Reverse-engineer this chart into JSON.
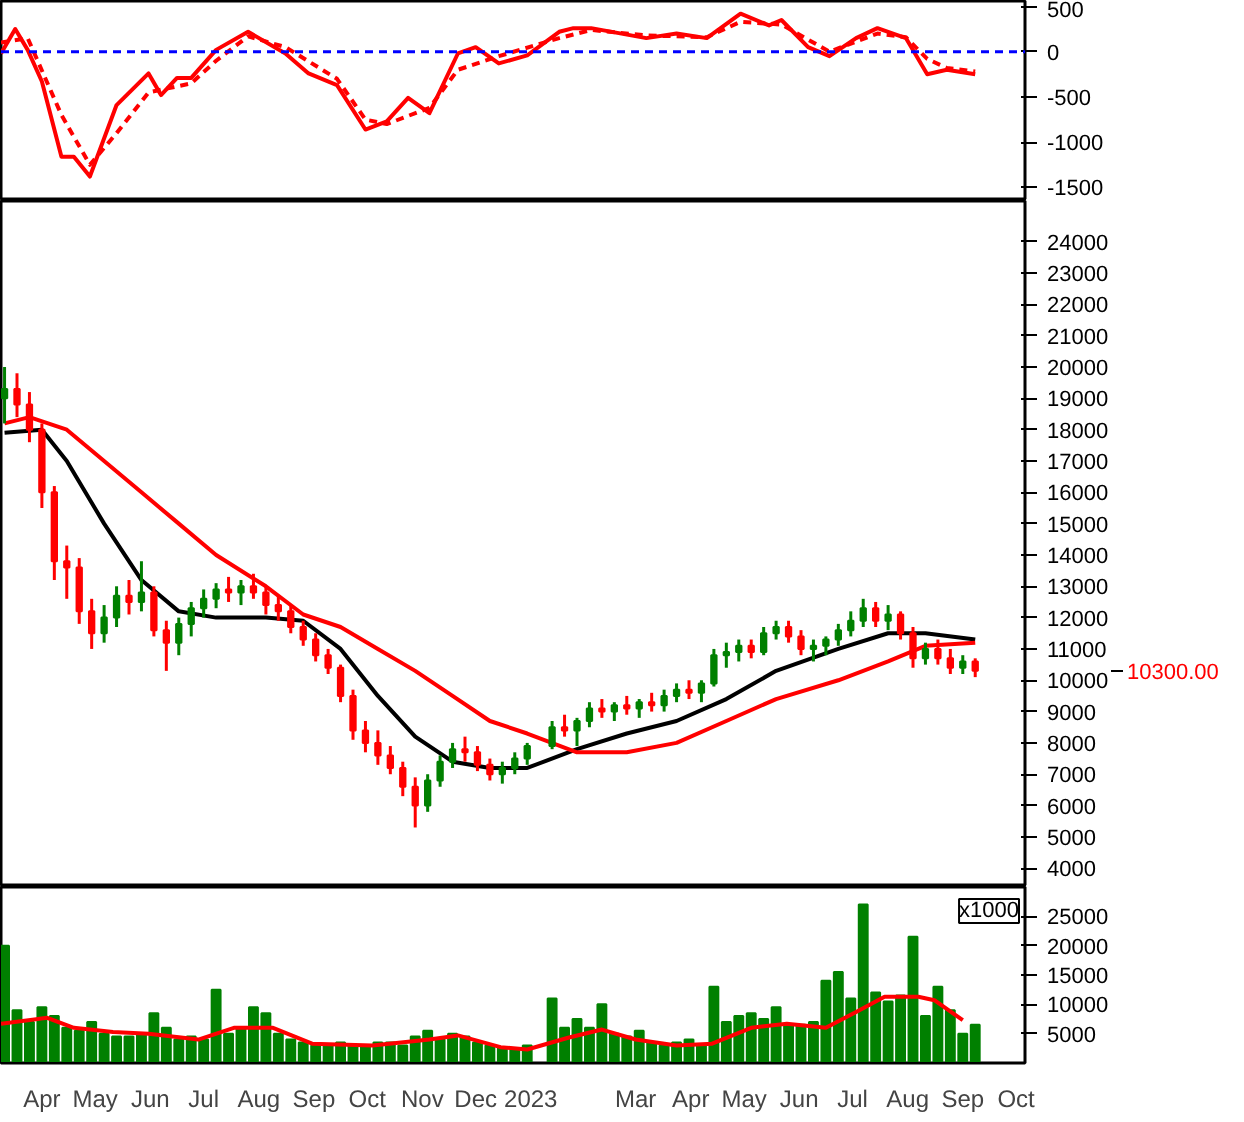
{
  "chart_data": [
    {
      "type": "line",
      "xlim": [
        "2022-03-23",
        "2023-10-20"
      ],
      "ylim": [
        -1650,
        560
      ],
      "yticks": [
        500,
        0,
        -500,
        -1000,
        -1500
      ],
      "tick_labels": "y",
      "grid": false,
      "ref_lines": [
        {
          "axis": "y",
          "value": 0,
          "label": null,
          "color": "#0000ff",
          "line_style": "dashed"
        }
      ],
      "series": [
        {
          "color": "#ff0000",
          "line_style": "solid",
          "x": [
            "2022-03-23",
            "2022-03-31",
            "2022-04-07",
            "2022-04-15",
            "2022-04-26",
            "2022-05-03",
            "2022-05-12",
            "2022-05-27",
            "2022-06-14",
            "2022-06-21",
            "2022-06-30",
            "2022-07-08",
            "2022-07-22",
            "2022-08-09",
            "2022-08-30",
            "2022-09-12",
            "2022-09-28",
            "2022-10-14",
            "2022-10-26",
            "2022-11-07",
            "2022-11-19",
            "2022-12-05",
            "2022-12-15",
            "2022-12-28",
            "2023-01-13",
            "2023-01-31",
            "2023-02-08",
            "2023-02-18",
            "2023-03-21",
            "2023-04-07",
            "2023-04-24",
            "2023-05-13",
            "2023-05-29",
            "2023-06-05",
            "2023-06-20",
            "2023-07-02",
            "2023-07-17",
            "2023-07-29",
            "2023-08-14",
            "2023-08-26",
            "2023-09-06",
            "2023-09-22"
          ],
          "values": [
            -20,
            250,
            20,
            -330,
            -1160,
            -1160,
            -1380,
            -590,
            -240,
            -480,
            -290,
            -290,
            20,
            220,
            -20,
            -240,
            -370,
            -860,
            -770,
            -510,
            -680,
            -20,
            50,
            -130,
            -40,
            220,
            260,
            260,
            150,
            200,
            150,
            420,
            290,
            350,
            50,
            -50,
            150,
            260,
            150,
            -250,
            -200,
            -250
          ]
        },
        {
          "color": "#ff0000",
          "line_style": "dashed",
          "x": [
            "2022-03-23",
            "2022-04-07",
            "2022-04-26",
            "2022-05-12",
            "2022-05-27",
            "2022-06-14",
            "2022-07-08",
            "2022-07-22",
            "2022-08-09",
            "2022-08-30",
            "2022-09-28",
            "2022-10-14",
            "2022-10-26",
            "2022-11-19",
            "2022-12-05",
            "2022-12-28",
            "2023-01-31",
            "2023-02-18",
            "2023-03-21",
            "2023-04-24",
            "2023-05-13",
            "2023-06-05",
            "2023-07-02",
            "2023-07-29",
            "2023-08-14",
            "2023-08-26",
            "2023-09-06",
            "2023-09-22"
          ],
          "values": [
            100,
            150,
            -700,
            -1250,
            -900,
            -450,
            -350,
            -100,
            170,
            50,
            -300,
            -750,
            -800,
            -620,
            -200,
            -50,
            150,
            240,
            180,
            160,
            330,
            300,
            0,
            200,
            160,
            -80,
            -180,
            -220
          ]
        }
      ]
    },
    {
      "type": "candlestick",
      "xlim": [
        "2022-03-23",
        "2023-10-20"
      ],
      "ylim": [
        3400,
        25300
      ],
      "yticks": [
        4000,
        5000,
        6000,
        7000,
        8000,
        9000,
        10000,
        11000,
        12000,
        13000,
        14000,
        15000,
        16000,
        17000,
        18000,
        19000,
        20000,
        21000,
        22000,
        23000,
        24000
      ],
      "tick_labels": "y",
      "grid": false,
      "annotations": [
        "10300.00"
      ],
      "x": [
        "2022-03-25",
        "2022-04-01",
        "2022-04-08",
        "2022-04-15",
        "2022-04-22",
        "2022-04-29",
        "2022-05-06",
        "2022-05-13",
        "2022-05-20",
        "2022-05-27",
        "2022-06-03",
        "2022-06-10",
        "2022-06-17",
        "2022-06-24",
        "2022-07-01",
        "2022-07-08",
        "2022-07-15",
        "2022-07-22",
        "2022-07-29",
        "2022-08-05",
        "2022-08-12",
        "2022-08-19",
        "2022-08-26",
        "2022-09-02",
        "2022-09-09",
        "2022-09-16",
        "2022-09-23",
        "2022-09-30",
        "2022-10-07",
        "2022-10-14",
        "2022-10-21",
        "2022-10-28",
        "2022-11-04",
        "2022-11-11",
        "2022-11-18",
        "2022-11-25",
        "2022-12-02",
        "2022-12-09",
        "2022-12-16",
        "2022-12-23",
        "2022-12-30",
        "2023-01-06",
        "2023-01-13",
        "2023-01-27",
        "2023-02-03",
        "2023-02-10",
        "2023-02-17",
        "2023-02-24",
        "2023-03-03",
        "2023-03-10",
        "2023-03-17",
        "2023-03-24",
        "2023-03-31",
        "2023-04-07",
        "2023-04-14",
        "2023-04-21",
        "2023-04-28",
        "2023-05-05",
        "2023-05-12",
        "2023-05-19",
        "2023-05-26",
        "2023-06-02",
        "2023-06-09",
        "2023-06-16",
        "2023-06-23",
        "2023-06-30",
        "2023-07-07",
        "2023-07-14",
        "2023-07-21",
        "2023-07-28",
        "2023-08-04",
        "2023-08-11",
        "2023-08-18",
        "2023-08-25",
        "2023-09-01",
        "2023-09-08",
        "2023-09-15",
        "2023-09-22"
      ],
      "ohlc": [
        [
          19000,
          20000,
          18200,
          19300
        ],
        [
          19300,
          19800,
          18400,
          18800
        ],
        [
          18800,
          19200,
          17600,
          18000
        ],
        [
          18000,
          18200,
          15500,
          16000
        ],
        [
          16000,
          16200,
          13200,
          13800
        ],
        [
          13800,
          14300,
          12600,
          13600
        ],
        [
          13600,
          13900,
          11800,
          12200
        ],
        [
          12200,
          12600,
          11000,
          11500
        ],
        [
          11500,
          12400,
          11200,
          12000
        ],
        [
          12000,
          13000,
          11700,
          12700
        ],
        [
          12700,
          13200,
          12100,
          12500
        ],
        [
          12500,
          13800,
          12200,
          12800
        ],
        [
          12800,
          13000,
          11400,
          11600
        ],
        [
          11600,
          11900,
          10300,
          11200
        ],
        [
          11200,
          12000,
          10800,
          11800
        ],
        [
          11800,
          12500,
          11400,
          12300
        ],
        [
          12300,
          12900,
          12000,
          12600
        ],
        [
          12600,
          13100,
          12300,
          12900
        ],
        [
          12900,
          13300,
          12500,
          12800
        ],
        [
          12800,
          13200,
          12400,
          13000
        ],
        [
          13000,
          13400,
          12600,
          12800
        ],
        [
          12800,
          13000,
          12100,
          12400
        ],
        [
          12400,
          12700,
          11900,
          12200
        ],
        [
          12200,
          12400,
          11500,
          11700
        ],
        [
          11700,
          11900,
          11100,
          11300
        ],
        [
          11300,
          11500,
          10600,
          10800
        ],
        [
          10800,
          11000,
          10200,
          10400
        ],
        [
          10400,
          10500,
          9300,
          9500
        ],
        [
          9500,
          9700,
          8100,
          8400
        ],
        [
          8400,
          8700,
          7700,
          8000
        ],
        [
          8000,
          8400,
          7300,
          7600
        ],
        [
          7600,
          7900,
          7000,
          7200
        ],
        [
          7200,
          7400,
          6300,
          6600
        ],
        [
          6600,
          6900,
          5300,
          6000
        ],
        [
          6000,
          7000,
          5800,
          6800
        ],
        [
          6800,
          7600,
          6600,
          7400
        ],
        [
          7400,
          8000,
          7200,
          7800
        ],
        [
          7800,
          8200,
          7400,
          7700
        ],
        [
          7700,
          7900,
          7100,
          7300
        ],
        [
          7300,
          7500,
          6800,
          7000
        ],
        [
          7000,
          7400,
          6700,
          7200
        ],
        [
          7200,
          7700,
          7000,
          7500
        ],
        [
          7500,
          8000,
          7300,
          7900
        ],
        [
          7900,
          8700,
          7800,
          8500
        ],
        [
          8500,
          8900,
          8200,
          8400
        ],
        [
          8400,
          8800,
          7900,
          8700
        ],
        [
          8700,
          9300,
          8500,
          9100
        ],
        [
          9100,
          9400,
          8800,
          9000
        ],
        [
          9000,
          9300,
          8700,
          9200
        ],
        [
          9200,
          9500,
          8900,
          9100
        ],
        [
          9100,
          9400,
          8800,
          9300
        ],
        [
          9300,
          9600,
          9000,
          9200
        ],
        [
          9200,
          9700,
          9000,
          9500
        ],
        [
          9500,
          9900,
          9300,
          9700
        ],
        [
          9700,
          10000,
          9400,
          9600
        ],
        [
          9600,
          10000,
          9300,
          9900
        ],
        [
          9900,
          11000,
          9800,
          10800
        ],
        [
          10800,
          11200,
          10400,
          10900
        ],
        [
          10900,
          11300,
          10600,
          11100
        ],
        [
          11100,
          11300,
          10700,
          10900
        ],
        [
          10900,
          11700,
          10800,
          11500
        ],
        [
          11500,
          11900,
          11300,
          11700
        ],
        [
          11700,
          11900,
          11200,
          11400
        ],
        [
          11400,
          11600,
          10800,
          11000
        ],
        [
          11000,
          11300,
          10600,
          11100
        ],
        [
          11100,
          11400,
          10800,
          11300
        ],
        [
          11300,
          11800,
          11100,
          11600
        ],
        [
          11600,
          12200,
          11400,
          11900
        ],
        [
          11900,
          12600,
          11700,
          12300
        ],
        [
          12300,
          12500,
          11700,
          11900
        ],
        [
          11900,
          12400,
          11600,
          12100
        ],
        [
          12100,
          12200,
          11300,
          11500
        ],
        [
          11500,
          11700,
          10400,
          10700
        ],
        [
          10700,
          11200,
          10500,
          11000
        ],
        [
          11000,
          11300,
          10500,
          10700
        ],
        [
          10700,
          11000,
          10200,
          10400
        ],
        [
          10400,
          10800,
          10200,
          10600
        ],
        [
          10600,
          10700,
          10100,
          10300
        ]
      ],
      "colors": [
        "#008000",
        "#ff0000",
        "#ff0000",
        "#ff0000",
        "#ff0000",
        "#ff0000",
        "#ff0000",
        "#ff0000",
        "#008000",
        "#008000",
        "#ff0000",
        "#008000",
        "#ff0000",
        "#ff0000",
        "#008000",
        "#008000",
        "#008000",
        "#008000",
        "#ff0000",
        "#008000",
        "#ff0000",
        "#ff0000",
        "#ff0000",
        "#ff0000",
        "#ff0000",
        "#ff0000",
        "#ff0000",
        "#ff0000",
        "#ff0000",
        "#ff0000",
        "#ff0000",
        "#ff0000",
        "#ff0000",
        "#ff0000",
        "#008000",
        "#008000",
        "#008000",
        "#ff0000",
        "#ff0000",
        "#ff0000",
        "#008000",
        "#008000",
        "#008000",
        "#008000",
        "#ff0000",
        "#008000",
        "#008000",
        "#ff0000",
        "#008000",
        "#ff0000",
        "#008000",
        "#ff0000",
        "#008000",
        "#008000",
        "#ff0000",
        "#008000",
        "#008000",
        "#008000",
        "#008000",
        "#ff0000",
        "#008000",
        "#008000",
        "#ff0000",
        "#ff0000",
        "#008000",
        "#008000",
        "#008000",
        "#008000",
        "#008000",
        "#ff0000",
        "#008000",
        "#ff0000",
        "#ff0000",
        "#008000",
        "#ff0000",
        "#ff0000",
        "#008000",
        "#ff0000"
      ],
      "series": [
        {
          "type": "line",
          "color": "#000000",
          "x": [
            "2022-03-25",
            "2022-04-15",
            "2022-04-29",
            "2022-05-20",
            "2022-06-10",
            "2022-07-01",
            "2022-07-22",
            "2022-08-19",
            "2022-09-09",
            "2022-09-30",
            "2022-10-21",
            "2022-11-11",
            "2022-12-02",
            "2022-12-23",
            "2023-01-13",
            "2023-02-10",
            "2023-03-10",
            "2023-04-07",
            "2023-05-05",
            "2023-06-02",
            "2023-07-07",
            "2023-08-04",
            "2023-08-25",
            "2023-09-22"
          ],
          "values": [
            17900,
            18000,
            17000,
            15000,
            13200,
            12200,
            12000,
            12000,
            11900,
            11000,
            9500,
            8200,
            7400,
            7200,
            7200,
            7800,
            8300,
            8700,
            9400,
            10300,
            11000,
            11500,
            11500,
            11300
          ]
        },
        {
          "type": "line",
          "color": "#ff0000",
          "x": [
            "2022-03-25",
            "2022-04-08",
            "2022-04-29",
            "2022-05-20",
            "2022-06-10",
            "2022-07-01",
            "2022-07-22",
            "2022-08-19",
            "2022-09-09",
            "2022-09-30",
            "2022-10-21",
            "2022-11-11",
            "2022-12-02",
            "2022-12-23",
            "2023-01-13",
            "2023-02-10",
            "2023-03-10",
            "2023-04-07",
            "2023-05-05",
            "2023-06-02",
            "2023-07-07",
            "2023-08-04",
            "2023-08-25",
            "2023-09-22"
          ],
          "values": [
            18200,
            18400,
            18000,
            17000,
            16000,
            15000,
            14000,
            13000,
            12100,
            11700,
            11000,
            10300,
            9500,
            8700,
            8300,
            7700,
            7700,
            8000,
            8700,
            9400,
            10000,
            10600,
            11100,
            11200
          ]
        }
      ]
    },
    {
      "type": "bar",
      "xlim": [
        "2022-03-23",
        "2023-10-20"
      ],
      "ylim": [
        0,
        30000
      ],
      "yticks": [
        5000,
        10000,
        15000,
        20000,
        25000
      ],
      "grid": false,
      "xticks": [
        {
          "value": "2022-04-15",
          "label": "Apr"
        },
        {
          "value": "2022-05-15",
          "label": "May"
        },
        {
          "value": "2022-06-15",
          "label": "Jun"
        },
        {
          "value": "2022-07-15",
          "label": "Jul"
        },
        {
          "value": "2022-08-15",
          "label": "Aug"
        },
        {
          "value": "2022-09-15",
          "label": "Sep"
        },
        {
          "value": "2022-10-15",
          "label": "Oct"
        },
        {
          "value": "2022-11-15",
          "label": "Nov"
        },
        {
          "value": "2022-12-15",
          "label": "Dec"
        },
        {
          "value": "2023-01-15",
          "label": "2023"
        },
        {
          "value": "2023-03-15",
          "label": "Mar"
        },
        {
          "value": "2023-04-15",
          "label": "Apr"
        },
        {
          "value": "2023-05-15",
          "label": "May"
        },
        {
          "value": "2023-06-15",
          "label": "Jun"
        },
        {
          "value": "2023-07-15",
          "label": "Jul"
        },
        {
          "value": "2023-08-15",
          "label": "Aug"
        },
        {
          "value": "2023-09-15",
          "label": "Sep"
        },
        {
          "value": "2023-10-15",
          "label": "Oct"
        }
      ],
      "annotations": [
        "x1000"
      ],
      "x": [
        "2022-03-25",
        "2022-04-01",
        "2022-04-08",
        "2022-04-15",
        "2022-04-22",
        "2022-04-29",
        "2022-05-06",
        "2022-05-13",
        "2022-05-20",
        "2022-05-27",
        "2022-06-03",
        "2022-06-10",
        "2022-06-17",
        "2022-06-24",
        "2022-07-01",
        "2022-07-08",
        "2022-07-15",
        "2022-07-22",
        "2022-07-29",
        "2022-08-05",
        "2022-08-12",
        "2022-08-19",
        "2022-08-26",
        "2022-09-02",
        "2022-09-09",
        "2022-09-16",
        "2022-09-23",
        "2022-09-30",
        "2022-10-07",
        "2022-10-14",
        "2022-10-21",
        "2022-10-28",
        "2022-11-04",
        "2022-11-11",
        "2022-11-18",
        "2022-11-25",
        "2022-12-02",
        "2022-12-09",
        "2022-12-16",
        "2022-12-23",
        "2022-12-30",
        "2023-01-06",
        "2023-01-13",
        "2023-01-27",
        "2023-02-03",
        "2023-02-10",
        "2023-02-17",
        "2023-02-24",
        "2023-03-03",
        "2023-03-10",
        "2023-03-17",
        "2023-03-24",
        "2023-03-31",
        "2023-04-07",
        "2023-04-14",
        "2023-04-21",
        "2023-04-28",
        "2023-05-05",
        "2023-05-12",
        "2023-05-19",
        "2023-05-26",
        "2023-06-02",
        "2023-06-09",
        "2023-06-16",
        "2023-06-23",
        "2023-06-30",
        "2023-07-07",
        "2023-07-14",
        "2023-07-21",
        "2023-07-28",
        "2023-08-04",
        "2023-08-11",
        "2023-08-18",
        "2023-08-25",
        "2023-09-01",
        "2023-09-08",
        "2023-09-15",
        "2023-09-22"
      ],
      "series": [
        {
          "type": "bar",
          "color": "#008000",
          "values": [
            20000,
            9000,
            7000,
            9500,
            8000,
            6000,
            5500,
            7000,
            5000,
            4500,
            4500,
            5000,
            8500,
            6000,
            4000,
            4500,
            4000,
            12500,
            5000,
            6000,
            9500,
            8500,
            5000,
            4000,
            3500,
            3000,
            3000,
            3500,
            3000,
            3000,
            3500,
            3500,
            3000,
            4500,
            5500,
            4000,
            5000,
            4500,
            3500,
            3000,
            2500,
            2500,
            3000,
            11000,
            6000,
            7500,
            6000,
            10000,
            5000,
            4500,
            5500,
            3500,
            3000,
            3500,
            4000,
            3000,
            13000,
            7000,
            8000,
            8500,
            7500,
            9500,
            6500,
            6500,
            7000,
            14000,
            15500,
            11000,
            27000,
            12000,
            10500,
            11500,
            21500,
            8000,
            13000,
            9000,
            5000,
            6500
          ]
        },
        {
          "type": "line",
          "color": "#ff0000",
          "x": [
            "2022-03-23",
            "2022-04-18",
            "2022-05-03",
            "2022-05-25",
            "2022-06-14",
            "2022-07-12",
            "2022-08-01",
            "2022-08-23",
            "2022-09-14",
            "2022-10-18",
            "2022-11-19",
            "2022-12-05",
            "2022-12-29",
            "2023-01-13",
            "2023-02-05",
            "2023-02-24",
            "2023-03-15",
            "2023-04-07",
            "2023-04-27",
            "2023-05-19",
            "2023-06-08",
            "2023-06-30",
            "2023-07-17",
            "2023-08-02",
            "2023-08-21",
            "2023-08-30",
            "2023-09-15"
          ],
          "values": [
            6700,
            7700,
            6000,
            5300,
            5000,
            4000,
            6000,
            6000,
            3300,
            3000,
            4000,
            4700,
            2700,
            2300,
            4300,
            5700,
            4000,
            3000,
            3300,
            6000,
            6700,
            6000,
            8700,
            11300,
            11300,
            10700,
            7300
          ]
        }
      ]
    }
  ]
}
